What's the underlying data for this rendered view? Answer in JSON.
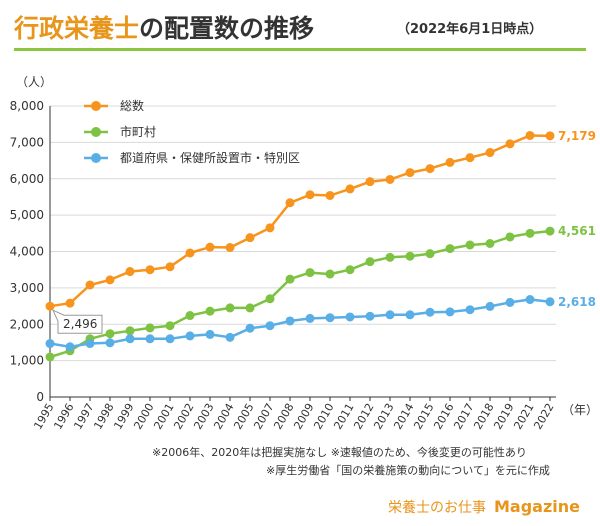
{
  "header": {
    "title_part1": "行政栄養士",
    "title_part2": "の配置数の推移",
    "date_note": "（2022年6月1日時点）"
  },
  "colors": {
    "title_accent": "#e8951c",
    "rule": "#8cc63f",
    "total": "#f7941d",
    "municipal": "#7dc242",
    "prefectural": "#5aaee6",
    "grid": "#d9d9d9",
    "axis": "#333333"
  },
  "chart_data": {
    "type": "line",
    "title": "行政栄養士の配置数の推移",
    "ylabel": "（人）",
    "xlabel": "（年）",
    "ylim": [
      0,
      8000
    ],
    "yticks": [
      0,
      1000,
      2000,
      3000,
      4000,
      5000,
      6000,
      7000,
      8000
    ],
    "ytick_labels": [
      "0",
      "1,000",
      "2,000",
      "3,000",
      "4,000",
      "5,000",
      "6,000",
      "7,000",
      "8,000"
    ],
    "x": [
      1995,
      1996,
      1997,
      1998,
      1999,
      2000,
      2001,
      2002,
      2003,
      2004,
      2005,
      2007,
      2008,
      2009,
      2010,
      2011,
      2012,
      2013,
      2014,
      2015,
      2016,
      2017,
      2018,
      2019,
      2021,
      2022
    ],
    "x_labels": [
      "1995",
      "1996",
      "1997",
      "1998",
      "1999",
      "2000",
      "2001",
      "2002",
      "2003",
      "2004",
      "2005",
      "2007",
      "2008",
      "2009",
      "2010",
      "2011",
      "2012",
      "2013",
      "2014",
      "2015",
      "2016",
      "2017",
      "2018",
      "2019",
      "2021",
      "2022"
    ],
    "series": [
      {
        "name": "総数",
        "key": "total",
        "values": [
          2496,
          2580,
          3080,
          3220,
          3450,
          3500,
          3580,
          3960,
          4120,
          4110,
          4380,
          4650,
          5340,
          5560,
          5540,
          5720,
          5920,
          5980,
          6170,
          6280,
          6450,
          6580,
          6720,
          6960,
          7190,
          7179
        ],
        "end_label": "7,179"
      },
      {
        "name": "市町村",
        "key": "municipal",
        "values": [
          1100,
          1270,
          1600,
          1740,
          1820,
          1900,
          1960,
          2240,
          2360,
          2450,
          2450,
          2700,
          3240,
          3420,
          3380,
          3500,
          3720,
          3840,
          3870,
          3940,
          4080,
          4180,
          4220,
          4400,
          4500,
          4561
        ],
        "end_label": "4,561"
      },
      {
        "name": "都道府県・保健所設置市・特別区",
        "key": "prefectural",
        "values": [
          1470,
          1380,
          1470,
          1490,
          1600,
          1600,
          1600,
          1680,
          1720,
          1640,
          1890,
          1960,
          2090,
          2160,
          2180,
          2200,
          2220,
          2260,
          2260,
          2330,
          2340,
          2400,
          2490,
          2600,
          2680,
          2618
        ],
        "end_label": "2,618"
      }
    ],
    "annotation": {
      "text": "2,496",
      "series": "総数",
      "x": 1995
    }
  },
  "footnotes": [
    "※2006年、2020年は把握実施なし  ※速報値のため、今後変更の可能性あり",
    "※厚生労働省「国の栄養施策の動向について」を元に作成"
  ],
  "logo": {
    "jp_text": "栄養士のお仕事",
    "en_text": "Magazine"
  }
}
